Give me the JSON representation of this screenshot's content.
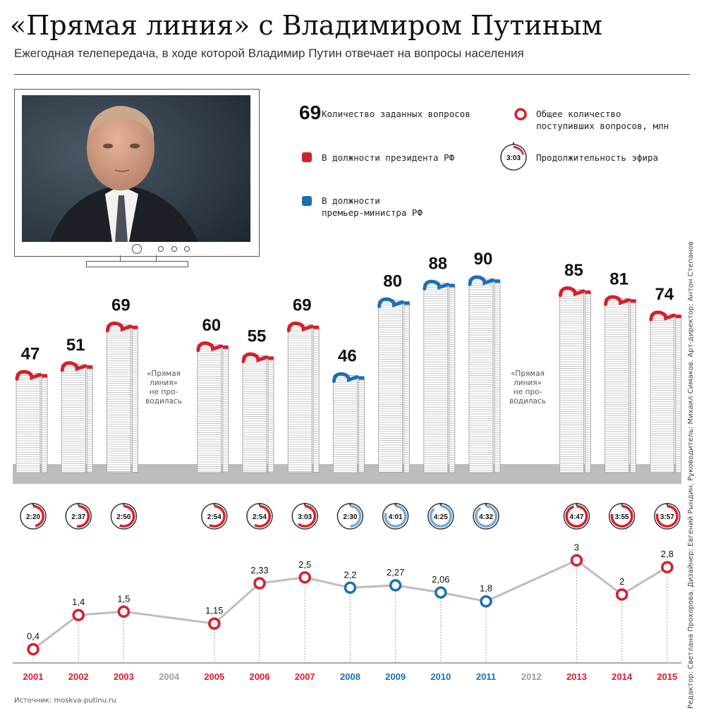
{
  "header": {
    "title": "«Прямая линия» с Владимиром Путиным",
    "subtitle": "Ежегодная телепередача, в ходе которой Владимир Путин отвечает на вопросы населения"
  },
  "legend": {
    "sample_value": "69",
    "questions_label": "Количество заданных вопросов",
    "total_label_1": "Общее количество",
    "total_label_2": "поступивших вопросов, млн",
    "president_label": "В должности президента РФ",
    "pm_label_1": "В должности",
    "pm_label_2": "премьер-министра РФ",
    "duration_sample": "3:03",
    "duration_label": "Продолжительность эфира"
  },
  "colors": {
    "president": "#d51f2b",
    "pm": "#1a6fb5",
    "line": "#bdbdbd",
    "base": "#bdbdbd",
    "inactive_year": "#9e9e9e"
  },
  "no_broadcast": {
    "line1": "«Прямая",
    "line2": "линия»",
    "line3": "не про-",
    "line4": "водилась"
  },
  "chart_data": {
    "type": "bar",
    "years": [
      "2001",
      "2002",
      "2003",
      "2004",
      "2005",
      "2006",
      "2007",
      "2008",
      "2009",
      "2010",
      "2011",
      "2012",
      "2013",
      "2014",
      "2015"
    ],
    "role": [
      "president",
      "president",
      "president",
      null,
      "president",
      "president",
      "president",
      "pm",
      "pm",
      "pm",
      "pm",
      null,
      "president",
      "president",
      "president"
    ],
    "questions_asked": [
      47,
      51,
      69,
      null,
      60,
      55,
      69,
      46,
      80,
      88,
      90,
      null,
      85,
      81,
      74
    ],
    "duration": [
      "2:20",
      "2:37",
      "2:50",
      null,
      "2:54",
      "2:54",
      "3:03",
      "2:30",
      "4:01",
      "4:25",
      "4:32",
      null,
      "4:47",
      "3:55",
      "3:57"
    ],
    "duration_minutes": [
      140,
      157,
      170,
      null,
      174,
      174,
      183,
      150,
      241,
      265,
      272,
      null,
      287,
      235,
      237
    ],
    "total_questions_mln": [
      0.4,
      1.4,
      1.5,
      null,
      1.15,
      2.33,
      2.5,
      2.2,
      2.27,
      2.06,
      1.8,
      null,
      3,
      2,
      2.8
    ],
    "total_questions_labels": [
      "0,4",
      "1,4",
      "1,5",
      null,
      "1,15",
      "2,33",
      "2,5",
      "2,2",
      "2,27",
      "2,06",
      "1,8",
      null,
      "3",
      "2",
      "2,8"
    ]
  },
  "footer": {
    "source": "Источник: moskva-putinu.ru",
    "credits": "Редактор: Светлана Прохорова. Дизайнер: Евгений Рындин. Руководитель: Михаил Симаков. Арт-директор: Антон Степанов"
  }
}
